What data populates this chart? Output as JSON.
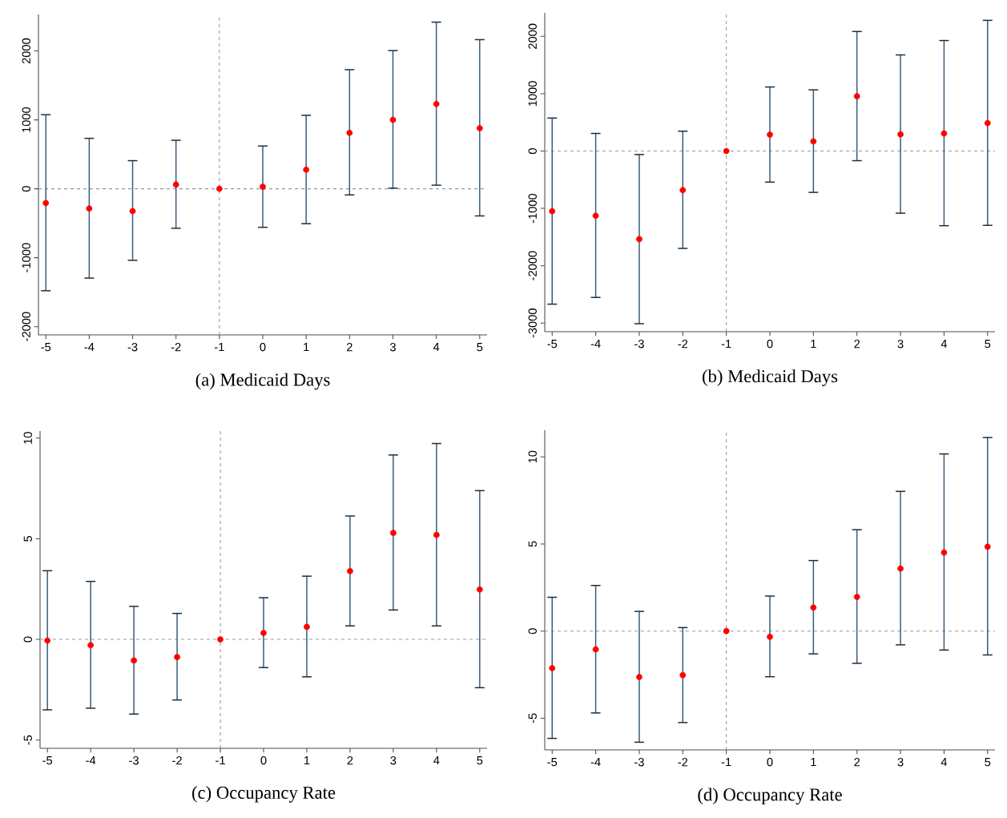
{
  "chart_data": [
    {
      "type": "scatter",
      "title": "(a) Medicaid Days",
      "x": [
        -5,
        -4,
        -3,
        -2,
        -1,
        0,
        1,
        2,
        3,
        4,
        5
      ],
      "color": "#ff0000",
      "marker": "circle",
      "values": [
        -207,
        -286,
        -324,
        61,
        0,
        28,
        277,
        812,
        1000,
        1230,
        878
      ],
      "errors": [
        [
          -1479,
          1075
        ],
        [
          -1296,
          732
        ],
        [
          -1038,
          408
        ],
        [
          -573,
          704
        ],
        null,
        [
          -559,
          620
        ],
        [
          -507,
          1066
        ],
        [
          -89,
          1728
        ],
        [
          9,
          2005
        ],
        [
          52,
          2418
        ],
        [
          -394,
          2164
        ]
      ],
      "xlim": [
        -5.17,
        5.17
      ],
      "ylim": [
        -2120,
        2530
      ],
      "xticks": [
        -5,
        -4,
        -3,
        -2,
        -1,
        0,
        1,
        2,
        3,
        4,
        5
      ],
      "yticks": [
        -2000,
        -1000,
        0,
        1000,
        2000
      ],
      "ref_lines": [
        {
          "axis": "x",
          "value": -1,
          "color": "#999999",
          "line_style": "dashed"
        },
        {
          "axis": "y",
          "value": 0,
          "color": "#999999",
          "line_style": "dashed"
        }
      ]
    },
    {
      "type": "scatter",
      "title": "(b) Medicaid Days",
      "x": [
        -5,
        -4,
        -3,
        -2,
        -1,
        0,
        1,
        2,
        3,
        4,
        5
      ],
      "color": "#ff0000",
      "marker": "circle",
      "values": [
        -1050,
        -1128,
        -1536,
        -682,
        0,
        285,
        168,
        955,
        291,
        307,
        486
      ],
      "errors": [
        [
          -2670,
          575
        ],
        [
          -2553,
          307
        ],
        [
          -3011,
          -61
        ],
        [
          -1698,
          346
        ],
        null,
        [
          -542,
          1117
        ],
        [
          -721,
          1067
        ],
        [
          -168,
          2084
        ],
        [
          -1084,
          1676
        ],
        [
          -1302,
          1927
        ],
        [
          -1296,
          2279
        ]
      ],
      "xlim": [
        -5.17,
        5.17
      ],
      "ylim": [
        -3150,
        2410
      ],
      "xticks": [
        -5,
        -4,
        -3,
        -2,
        -1,
        0,
        1,
        2,
        3,
        4,
        5
      ],
      "yticks": [
        -3000,
        -2000,
        -1000,
        0,
        1000,
        2000
      ],
      "ref_lines": [
        {
          "axis": "x",
          "value": -1,
          "color": "#999999",
          "line_style": "dashed"
        },
        {
          "axis": "y",
          "value": 0,
          "color": "#999999",
          "line_style": "dashed"
        }
      ]
    },
    {
      "type": "scatter",
      "title": "(c) Occupancy Rate",
      "x": [
        -5,
        -4,
        -3,
        -2,
        -1,
        0,
        1,
        2,
        3,
        4,
        5
      ],
      "color": "#ff0000",
      "marker": "circle",
      "values": [
        -0.06,
        -0.29,
        -1.05,
        -0.88,
        0,
        0.32,
        0.62,
        3.39,
        5.29,
        5.19,
        2.48
      ],
      "errors": [
        [
          -3.5,
          3.41
        ],
        [
          -3.42,
          2.88
        ],
        [
          -3.71,
          1.64
        ],
        [
          -3.01,
          1.29
        ],
        null,
        [
          -1.4,
          2.07
        ],
        [
          -1.86,
          3.14
        ],
        [
          0.67,
          6.13
        ],
        [
          1.46,
          9.16
        ],
        [
          0.67,
          9.73
        ],
        [
          -2.4,
          7.39
        ]
      ],
      "xlim": [
        -5.17,
        5.17
      ],
      "ylim": [
        -5.41,
        10.35
      ],
      "xticks": [
        -5,
        -4,
        -3,
        -2,
        -1,
        0,
        1,
        2,
        3,
        4,
        5
      ],
      "yticks": [
        -5,
        0,
        5,
        10
      ],
      "ref_lines": [
        {
          "axis": "x",
          "value": -1,
          "color": "#999999",
          "line_style": "dashed"
        },
        {
          "axis": "y",
          "value": 0,
          "color": "#999999",
          "line_style": "dashed"
        }
      ]
    },
    {
      "type": "scatter",
      "title": "(d) Occupancy Rate",
      "x": [
        -5,
        -4,
        -3,
        -2,
        -1,
        0,
        1,
        2,
        3,
        4,
        5
      ],
      "color": "#ff0000",
      "marker": "circle",
      "values": [
        -2.13,
        -1.05,
        -2.64,
        -2.53,
        0,
        -0.33,
        1.35,
        1.96,
        3.59,
        4.51,
        4.84
      ],
      "errors": [
        [
          -6.16,
          1.94
        ],
        [
          -4.7,
          2.62
        ],
        [
          -6.38,
          1.13
        ],
        [
          -5.25,
          0.2
        ],
        null,
        [
          -2.62,
          2.01
        ],
        [
          -1.31,
          4.05
        ],
        [
          -1.85,
          5.82
        ],
        [
          -0.79,
          8.02
        ],
        [
          -1.09,
          10.17
        ],
        [
          -1.37,
          11.11
        ]
      ],
      "xlim": [
        -5.17,
        5.17
      ],
      "ylim": [
        -6.82,
        11.53
      ],
      "xticks": [
        -5,
        -4,
        -3,
        -2,
        -1,
        0,
        1,
        2,
        3,
        4,
        5
      ],
      "yticks": [
        -5,
        0,
        5,
        10
      ],
      "ref_lines": [
        {
          "axis": "x",
          "value": -1,
          "color": "#999999",
          "line_style": "dashed"
        },
        {
          "axis": "y",
          "value": 0,
          "color": "#999999",
          "line_style": "dashed"
        }
      ]
    }
  ]
}
